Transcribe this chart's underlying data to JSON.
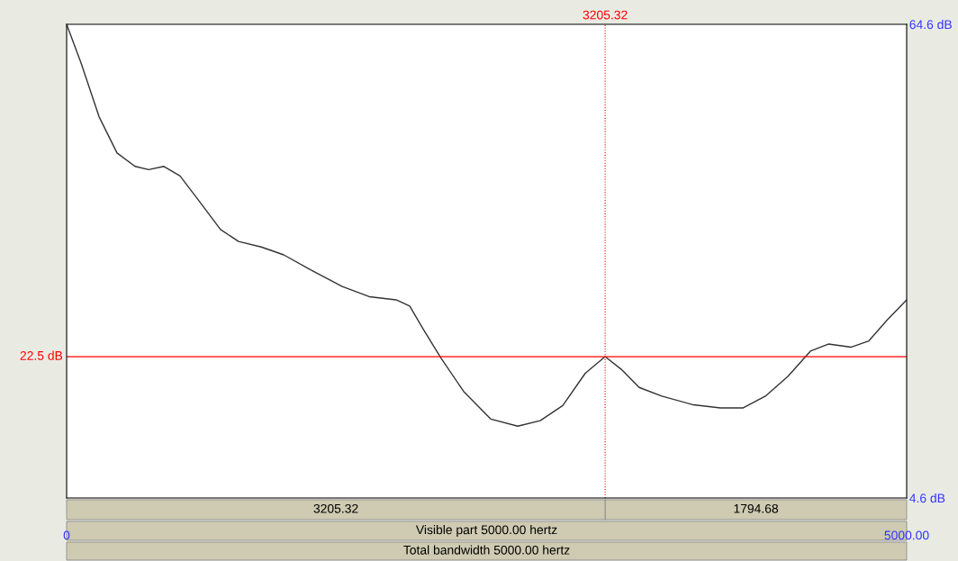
{
  "chart_data": {
    "type": "line",
    "series": [
      {
        "color": "#333333",
        "x": [
          0,
          86,
          193,
          300,
          407,
          488,
          579,
          675,
          782,
          916,
          1023,
          1158,
          1292,
          1452,
          1640,
          1801,
          1961,
          2042,
          2122,
          2229,
          2363,
          2524,
          2685,
          2819,
          2953,
          3087,
          3205.32,
          3301,
          3408,
          3542,
          3730,
          3891,
          4025,
          4159,
          4293,
          4427,
          4534,
          4668,
          4775,
          4882,
          5000
        ],
        "values": [
          64.6,
          59.7,
          52.9,
          48.3,
          46.6,
          46.2,
          46.6,
          45.4,
          42.4,
          38.6,
          37.1,
          36.4,
          35.4,
          33.5,
          31.4,
          30.1,
          29.7,
          28.9,
          26.0,
          22.3,
          18.1,
          14.6,
          13.7,
          14.4,
          16.3,
          20.4,
          22.5,
          20.9,
          18.6,
          17.5,
          16.4,
          16.0,
          16.0,
          17.5,
          20.0,
          23.2,
          24.1,
          23.7,
          24.5,
          27.1,
          29.7
        ]
      }
    ],
    "xlim": [
      0,
      5000
    ],
    "xticks": [
      {
        "value": 0,
        "label": "0"
      },
      {
        "value": 5000,
        "label": "5000.00"
      }
    ],
    "ylim": [
      4.6,
      64.6
    ],
    "yticks": [
      {
        "value": 64.6,
        "label": "64.6 dB"
      },
      {
        "value": 4.6,
        "label": "4.6 dB"
      }
    ],
    "ref_lines": [
      {
        "axis": "y",
        "value": 22.5,
        "label": "22.5 dB",
        "color": "#ff0000",
        "line_style": "solid"
      },
      {
        "axis": "x",
        "value": 3205.32,
        "label": "3205.32",
        "color": "#ff0000",
        "line_style": "dotted"
      }
    ],
    "annotations": [
      "3205.32",
      "1794.68",
      "Visible part 5000.00 hertz",
      "Total bandwidth 5000.00 hertz"
    ],
    "grid": false,
    "legend": false
  }
}
